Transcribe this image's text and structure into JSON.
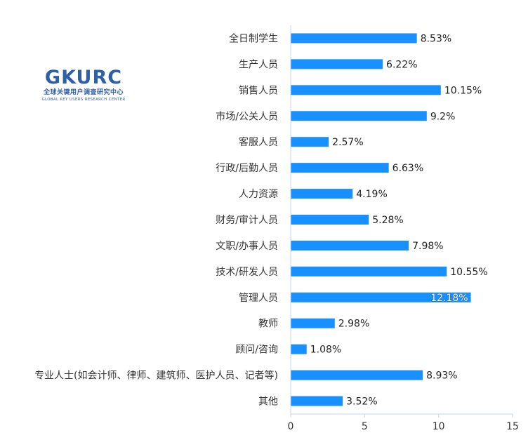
{
  "logo": {
    "main": "GKURC",
    "cn": "全球关键用户调查研究中心",
    "en": "GLOBAL KEY USERS RESEARCH CENTER"
  },
  "colors": {
    "bar": "#1890ff",
    "axis": "#c8d4e6"
  },
  "chart_data": {
    "type": "bar",
    "orientation": "horizontal",
    "categories": [
      "全日制学生",
      "生产人员",
      "销售人员",
      "市场/公关人员",
      "客服人员",
      "行政/后勤人员",
      "人力资源",
      "财务/审计人员",
      "文职/办事人员",
      "技术/研发人员",
      "管理人员",
      "教师",
      "顾问/咨询",
      "专业人士(如会计师、律师、建筑师、医护人员、记者等)",
      "其他"
    ],
    "values": [
      8.53,
      6.22,
      10.15,
      9.2,
      2.57,
      6.63,
      4.19,
      5.28,
      7.98,
      10.55,
      12.18,
      2.98,
      1.08,
      8.93,
      3.52
    ],
    "value_labels": [
      "8.53%",
      "6.22%",
      "10.15%",
      "9.2%",
      "2.57%",
      "6.63%",
      "4.19%",
      "5.28%",
      "7.98%",
      "10.55%",
      "12.18%",
      "2.98%",
      "1.08%",
      "8.93%",
      "3.52%"
    ],
    "xlim": [
      0,
      15
    ],
    "xticks": [
      0,
      5,
      10,
      15
    ],
    "xtick_labels": [
      "0",
      "5",
      "10",
      "15"
    ],
    "grid": false,
    "legend": "none"
  }
}
